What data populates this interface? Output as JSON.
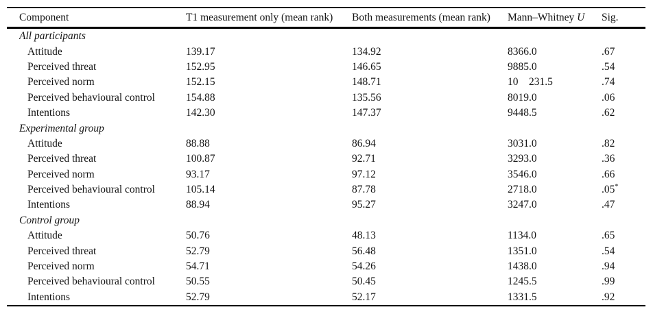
{
  "colors": {
    "background": "#ffffff",
    "text": "#141414",
    "rule": "#000000"
  },
  "table": {
    "columns": [
      {
        "key": "component",
        "label": "Component"
      },
      {
        "key": "t1_mean_rank",
        "label": "T1 measurement only (mean rank)"
      },
      {
        "key": "both_mean_rank",
        "label": "Both measurements (mean rank)"
      },
      {
        "key": "mann_whitney_u",
        "label": "Mann–Whitney ",
        "italic_suffix": "U"
      },
      {
        "key": "sig",
        "label": "Sig."
      }
    ],
    "sections": [
      {
        "label": "All participants",
        "rows": [
          {
            "component": "Attitude",
            "t1_mean_rank": "139.17",
            "both_mean_rank": "134.92",
            "mann_whitney_u": "8366.0",
            "sig": ".67"
          },
          {
            "component": "Perceived threat",
            "t1_mean_rank": "152.95",
            "both_mean_rank": "146.65",
            "mann_whitney_u": "9885.0",
            "sig": ".54"
          },
          {
            "component": "Perceived norm",
            "t1_mean_rank": "152.15",
            "both_mean_rank": "148.71",
            "mann_whitney_u": "10    231.5",
            "sig": ".74"
          },
          {
            "component": "Perceived behavioural control",
            "t1_mean_rank": "154.88",
            "both_mean_rank": "135.56",
            "mann_whitney_u": "8019.0",
            "sig": ".06"
          },
          {
            "component": "Intentions",
            "t1_mean_rank": "142.30",
            "both_mean_rank": "147.37",
            "mann_whitney_u": "9448.5",
            "sig": ".62"
          }
        ]
      },
      {
        "label": "Experimental group",
        "rows": [
          {
            "component": "Attitude",
            "t1_mean_rank": "88.88",
            "both_mean_rank": "86.94",
            "mann_whitney_u": "3031.0",
            "sig": ".82"
          },
          {
            "component": "Perceived threat",
            "t1_mean_rank": "100.87",
            "both_mean_rank": "92.71",
            "mann_whitney_u": "3293.0",
            "sig": ".36"
          },
          {
            "component": "Perceived norm",
            "t1_mean_rank": "93.17",
            "both_mean_rank": "97.12",
            "mann_whitney_u": "3546.0",
            "sig": ".66"
          },
          {
            "component": "Perceived behavioural control",
            "t1_mean_rank": "105.14",
            "both_mean_rank": "87.78",
            "mann_whitney_u": "2718.0",
            "sig": ".05",
            "sig_sup": "*"
          },
          {
            "component": "Intentions",
            "t1_mean_rank": "88.94",
            "both_mean_rank": "95.27",
            "mann_whitney_u": "3247.0",
            "sig": ".47"
          }
        ]
      },
      {
        "label": "Control group",
        "rows": [
          {
            "component": "Attitude",
            "t1_mean_rank": "50.76",
            "both_mean_rank": "48.13",
            "mann_whitney_u": "1134.0",
            "sig": ".65"
          },
          {
            "component": "Perceived threat",
            "t1_mean_rank": "52.79",
            "both_mean_rank": "56.48",
            "mann_whitney_u": "1351.0",
            "sig": ".54"
          },
          {
            "component": "Perceived norm",
            "t1_mean_rank": "54.71",
            "both_mean_rank": "54.26",
            "mann_whitney_u": "1438.0",
            "sig": ".94"
          },
          {
            "component": "Perceived behavioural control",
            "t1_mean_rank": "50.55",
            "both_mean_rank": "50.45",
            "mann_whitney_u": "1245.5",
            "sig": ".99"
          },
          {
            "component": "Intentions",
            "t1_mean_rank": "52.79",
            "both_mean_rank": "52.17",
            "mann_whitney_u": "1331.5",
            "sig": ".92"
          }
        ]
      }
    ]
  }
}
